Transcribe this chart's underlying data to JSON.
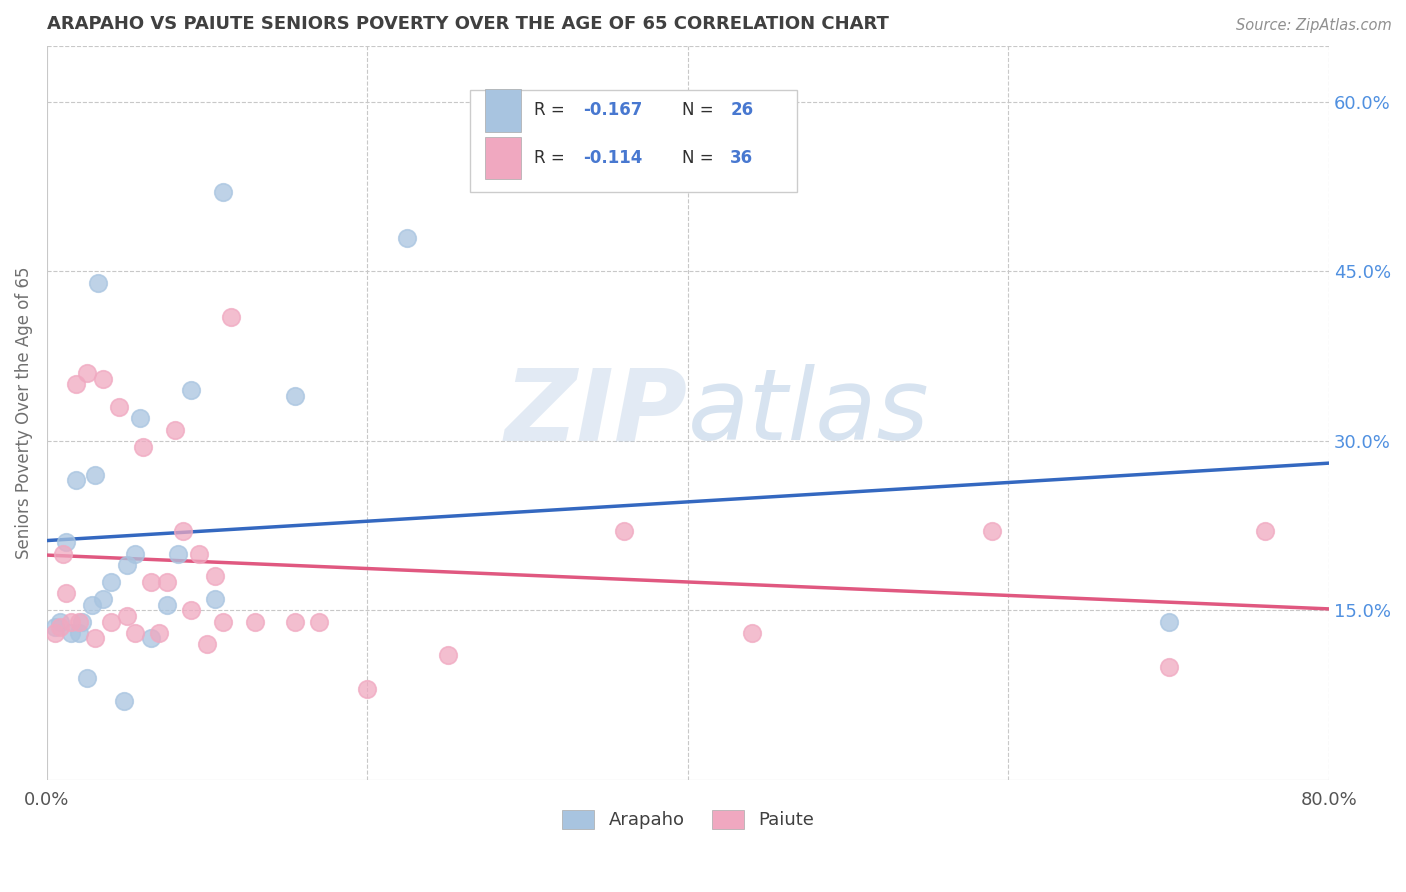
{
  "title": "ARAPAHO VS PAIUTE SENIORS POVERTY OVER THE AGE OF 65 CORRELATION CHART",
  "source_text": "Source: ZipAtlas.com",
  "ylabel": "Seniors Poverty Over the Age of 65",
  "xlim": [
    0.0,
    0.8
  ],
  "ylim": [
    0.0,
    0.65
  ],
  "ytick_labels_right": [
    "60.0%",
    "45.0%",
    "30.0%",
    "15.0%"
  ],
  "ytick_vals_right": [
    0.6,
    0.45,
    0.3,
    0.15
  ],
  "watermark_zip": "ZIP",
  "watermark_atlas": "atlas",
  "legend_r_arapaho": "-0.167",
  "legend_n_arapaho": "26",
  "legend_r_paiute": "-0.114",
  "legend_n_paiute": "36",
  "arapaho_color": "#a8c4e0",
  "paiute_color": "#f0a8c0",
  "arapaho_line_color": "#3468c0",
  "paiute_line_color": "#e05880",
  "background_color": "#ffffff",
  "grid_color": "#c8c8c8",
  "title_color": "#404040",
  "right_axis_color": "#5090e0",
  "legend_text_color": "#303030",
  "legend_val_color": "#4878d0",
  "arapaho_x": [
    0.005,
    0.008,
    0.012,
    0.015,
    0.018,
    0.02,
    0.022,
    0.025,
    0.028,
    0.03,
    0.032,
    0.035,
    0.04,
    0.048,
    0.05,
    0.055,
    0.058,
    0.065,
    0.075,
    0.082,
    0.09,
    0.105,
    0.11,
    0.155,
    0.225,
    0.7
  ],
  "arapaho_y": [
    0.135,
    0.14,
    0.21,
    0.13,
    0.265,
    0.13,
    0.14,
    0.09,
    0.155,
    0.27,
    0.44,
    0.16,
    0.175,
    0.07,
    0.19,
    0.2,
    0.32,
    0.125,
    0.155,
    0.2,
    0.345,
    0.16,
    0.52,
    0.34,
    0.48,
    0.14
  ],
  "paiute_x": [
    0.005,
    0.008,
    0.01,
    0.012,
    0.015,
    0.018,
    0.02,
    0.025,
    0.03,
    0.035,
    0.04,
    0.045,
    0.05,
    0.055,
    0.06,
    0.065,
    0.07,
    0.075,
    0.08,
    0.085,
    0.09,
    0.095,
    0.1,
    0.105,
    0.11,
    0.115,
    0.13,
    0.155,
    0.17,
    0.2,
    0.25,
    0.36,
    0.44,
    0.59,
    0.7,
    0.76
  ],
  "paiute_y": [
    0.13,
    0.135,
    0.2,
    0.165,
    0.14,
    0.35,
    0.14,
    0.36,
    0.125,
    0.355,
    0.14,
    0.33,
    0.145,
    0.13,
    0.295,
    0.175,
    0.13,
    0.175,
    0.31,
    0.22,
    0.15,
    0.2,
    0.12,
    0.18,
    0.14,
    0.41,
    0.14,
    0.14,
    0.14,
    0.08,
    0.11,
    0.22,
    0.13,
    0.22,
    0.1,
    0.22
  ]
}
